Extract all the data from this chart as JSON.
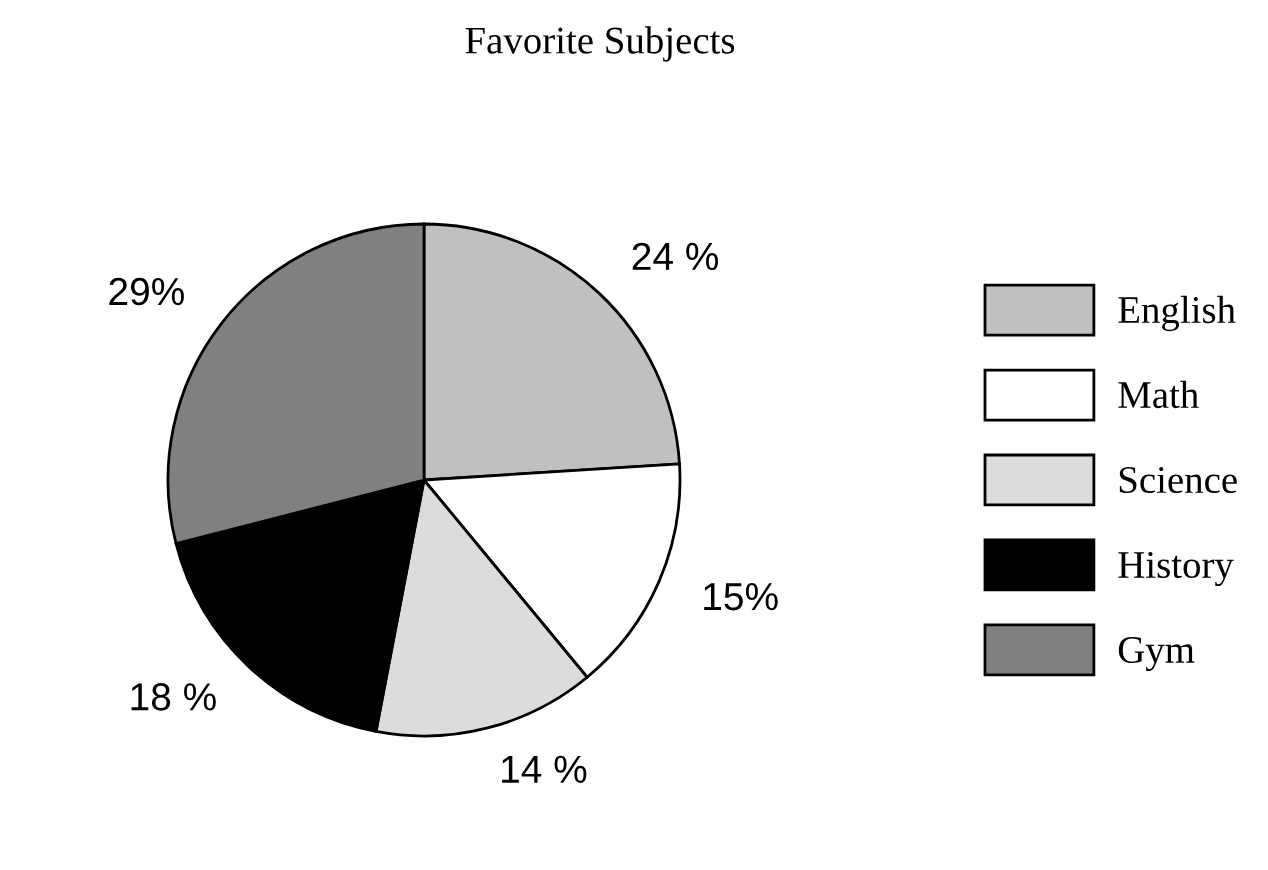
{
  "chart_data": {
    "type": "pie",
    "title": "Favorite Subjects",
    "categories": [
      "English",
      "Math",
      "Science",
      "History",
      "Gym"
    ],
    "values": [
      24,
      15,
      14,
      18,
      29
    ],
    "value_labels": [
      "24 %",
      "15%",
      "14 %",
      "18 %",
      "29%"
    ],
    "colors": [
      "#c0c0c0",
      "#ffffff",
      "#dcdcdc",
      "#000000",
      "#808080"
    ],
    "legend": "right"
  }
}
